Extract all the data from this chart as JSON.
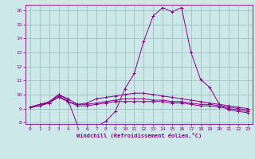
{
  "xlabel": "Windchill (Refroidissement éolien,°C)",
  "xlim": [
    -0.5,
    23.5
  ],
  "ylim": [
    7.9,
    16.4
  ],
  "yticks": [
    8,
    9,
    10,
    11,
    12,
    13,
    14,
    15,
    16
  ],
  "xticks": [
    0,
    1,
    2,
    3,
    4,
    5,
    6,
    7,
    8,
    9,
    10,
    11,
    12,
    13,
    14,
    15,
    16,
    17,
    18,
    19,
    20,
    21,
    22,
    23
  ],
  "background_color": "#cce8e8",
  "line_color": "#880088",
  "grid_color": "#99bbbb",
  "lines": [
    [
      9.1,
      9.3,
      9.4,
      10.0,
      9.6,
      7.8,
      7.8,
      7.7,
      8.1,
      8.8,
      10.4,
      11.5,
      13.8,
      15.6,
      16.2,
      15.9,
      16.2,
      13.0,
      11.1,
      10.5,
      9.3,
      8.9,
      8.8,
      8.7
    ],
    [
      9.1,
      9.3,
      9.5,
      10.0,
      9.7,
      9.3,
      9.4,
      9.7,
      9.8,
      9.9,
      10.0,
      10.1,
      10.1,
      10.0,
      9.9,
      9.8,
      9.7,
      9.6,
      9.5,
      9.4,
      9.3,
      9.2,
      9.1,
      9.0
    ],
    [
      9.1,
      9.2,
      9.4,
      9.9,
      9.5,
      9.3,
      9.3,
      9.4,
      9.5,
      9.6,
      9.7,
      9.7,
      9.7,
      9.6,
      9.6,
      9.5,
      9.5,
      9.4,
      9.3,
      9.3,
      9.2,
      9.1,
      9.0,
      8.9
    ],
    [
      9.1,
      9.2,
      9.4,
      9.8,
      9.5,
      9.2,
      9.2,
      9.3,
      9.4,
      9.5,
      9.5,
      9.5,
      9.5,
      9.5,
      9.5,
      9.4,
      9.4,
      9.3,
      9.2,
      9.2,
      9.1,
      9.0,
      8.9,
      8.8
    ]
  ]
}
